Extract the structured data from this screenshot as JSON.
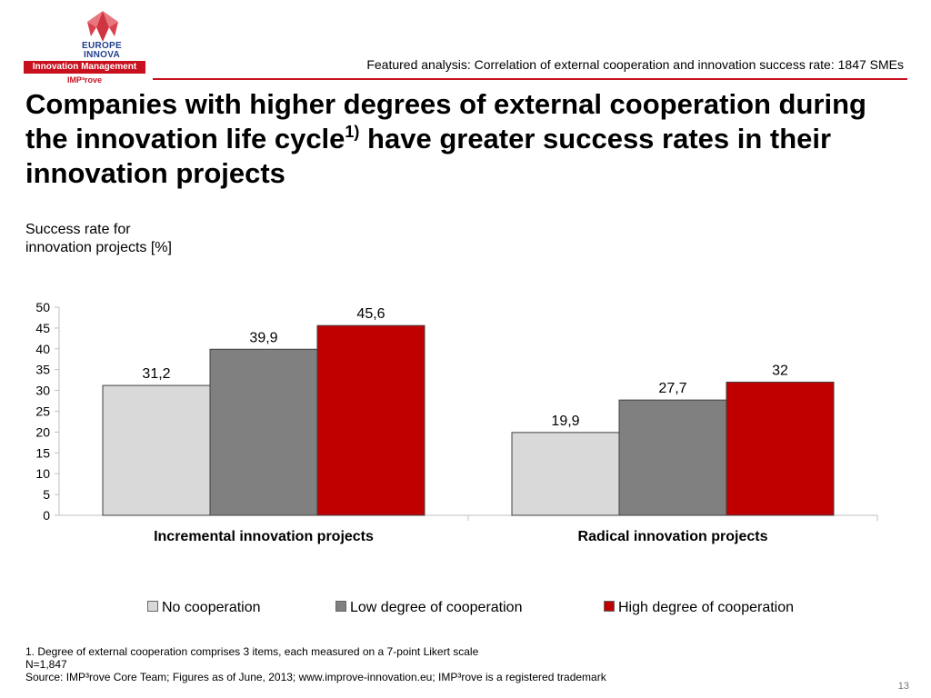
{
  "logo": {
    "line1": "EUROPE",
    "line2": "INNOVA",
    "bar": "Innovation Management",
    "sub": "IMP³rove"
  },
  "header": {
    "caption": "Featured analysis: Correlation of external cooperation and innovation success rate: 1847 SMEs",
    "title_part1": "Companies with higher degrees of external cooperation during the innovation life cycle",
    "title_sup": "1)",
    "title_part2": " have greater success rates in their innovation projects"
  },
  "y_unit": {
    "line1": "Success rate for",
    "line2": "innovation projects [%]"
  },
  "chart_data": {
    "type": "bar",
    "categories": [
      "Incremental innovation projects",
      "Radical innovation projects"
    ],
    "series": [
      {
        "name": "No cooperation",
        "values": [
          31.2,
          19.9
        ],
        "labels": [
          "31,2",
          "19,9"
        ],
        "color": "#d9d9d9"
      },
      {
        "name": "Low degree of cooperation",
        "values": [
          39.9,
          27.7
        ],
        "labels": [
          "39,9",
          "27,7"
        ],
        "color": "#808080"
      },
      {
        "name": "High degree of cooperation",
        "values": [
          45.6,
          32
        ],
        "labels": [
          "45,6",
          "32"
        ],
        "color": "#c00000"
      }
    ],
    "ylim": [
      0,
      50
    ],
    "yticks": [
      0,
      5,
      10,
      15,
      20,
      25,
      30,
      35,
      40,
      45,
      50
    ],
    "ylabel": "Success rate for innovation projects [%]",
    "grid": false,
    "legend": "bottom"
  },
  "footnotes": {
    "note1": "1. Degree of external cooperation comprises 3  items, each measured on a 7-point Likert scale",
    "note2": "N=1,847",
    "source": "Source: IMP³rove Core Team; Figures as of June, 2013; www.improve-innovation.eu; IMP³rove is a registered trademark"
  },
  "page_number": "13"
}
